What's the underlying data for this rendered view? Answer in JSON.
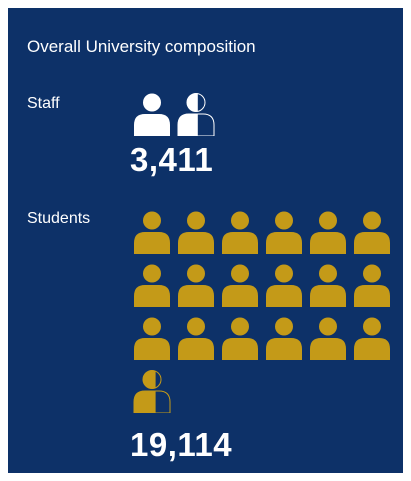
{
  "chart_data": {
    "type": "pictograph",
    "title": "Overall University composition",
    "categories": [
      "Staff",
      "Students"
    ],
    "series": [
      {
        "name": "Staff",
        "icons": 1.55,
        "value_label": "3,411",
        "color": "#ffffff"
      },
      {
        "name": "Students",
        "icons": 18.6,
        "value_label": "19,114",
        "color": "#c49a18"
      }
    ],
    "icons_per_row": 6,
    "background": "#0d3168"
  }
}
